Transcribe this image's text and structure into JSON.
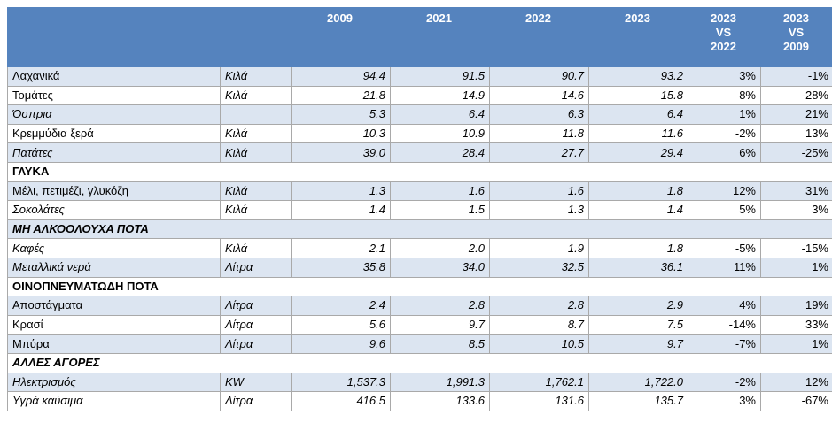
{
  "header": {
    "years": [
      "2009",
      "2021",
      "2022",
      "2023"
    ],
    "cmp1": [
      "2023",
      "VS",
      "2022"
    ],
    "cmp2": [
      "2023",
      "VS",
      "2009"
    ]
  },
  "rows": [
    {
      "type": "item",
      "name": "Λαχανικά",
      "name_italic": false,
      "unit": "Κιλά",
      "v2009": "94.4",
      "v2021": "91.5",
      "v2022": "90.7",
      "v2023": "93.2",
      "p1": "3%",
      "p2": "-1%"
    },
    {
      "type": "item",
      "name": "Τομάτες",
      "name_italic": false,
      "unit": "Κιλά",
      "v2009": "21.8",
      "v2021": "14.9",
      "v2022": "14.6",
      "v2023": "15.8",
      "p1": "8%",
      "p2": "-28%"
    },
    {
      "type": "item",
      "name": "Όσπρια",
      "name_italic": true,
      "unit": "",
      "v2009": "5.3",
      "v2021": "6.4",
      "v2022": "6.3",
      "v2023": "6.4",
      "p1": "1%",
      "p2": "21%"
    },
    {
      "type": "item",
      "name": "Κρεμμύδια ξερά",
      "name_italic": false,
      "unit": "Κιλά",
      "v2009": "10.3",
      "v2021": "10.9",
      "v2022": "11.8",
      "v2023": "11.6",
      "p1": "-2%",
      "p2": "13%"
    },
    {
      "type": "item",
      "name": "Πατάτες",
      "name_italic": true,
      "unit": "Κιλά",
      "v2009": "39.0",
      "v2021": "28.4",
      "v2022": "27.7",
      "v2023": "29.4",
      "p1": "6%",
      "p2": "-25%"
    },
    {
      "type": "cat",
      "name": "ΓΛΥΚΑ",
      "name_italic": false
    },
    {
      "type": "item",
      "name": "Μέλι, πετιμέζι, γλυκόζη",
      "name_italic": false,
      "unit": "Κιλά",
      "v2009": "1.3",
      "v2021": "1.6",
      "v2022": "1.6",
      "v2023": "1.8",
      "p1": "12%",
      "p2": "31%"
    },
    {
      "type": "item",
      "name": "Σοκολάτες",
      "name_italic": true,
      "unit": "Κιλά",
      "v2009": "1.4",
      "v2021": "1.5",
      "v2022": "1.3",
      "v2023": "1.4",
      "p1": "5%",
      "p2": "3%"
    },
    {
      "type": "cat",
      "name": "ΜΗ ΑΛΚΟΟΛΟΥΧΑ ΠΟΤΑ",
      "name_italic": true
    },
    {
      "type": "item",
      "name": "Καφές",
      "name_italic": true,
      "unit": "Κιλά",
      "v2009": "2.1",
      "v2021": "2.0",
      "v2022": "1.9",
      "v2023": "1.8",
      "p1": "-5%",
      "p2": "-15%"
    },
    {
      "type": "item",
      "name": "Μεταλλικά νερά",
      "name_italic": true,
      "unit": "Λίτρα",
      "v2009": "35.8",
      "v2021": "34.0",
      "v2022": "32.5",
      "v2023": "36.1",
      "p1": "11%",
      "p2": "1%"
    },
    {
      "type": "cat",
      "name": "ΟΙΝΟΠΝΕΥΜΑΤΩΔΗ ΠΟΤΑ",
      "name_italic": false
    },
    {
      "type": "item",
      "name": "Αποστάγματα",
      "name_italic": false,
      "unit": "Λίτρα",
      "v2009": "2.4",
      "v2021": "2.8",
      "v2022": "2.8",
      "v2023": "2.9",
      "p1": "4%",
      "p2": "19%"
    },
    {
      "type": "item",
      "name": "Κρασί",
      "name_italic": false,
      "unit": "Λίτρα",
      "v2009": "5.6",
      "v2021": "9.7",
      "v2022": "8.7",
      "v2023": "7.5",
      "p1": "-14%",
      "p2": "33%"
    },
    {
      "type": "item",
      "name": "Μπύρα",
      "name_italic": false,
      "unit": "Λίτρα",
      "v2009": "9.6",
      "v2021": "8.5",
      "v2022": "10.5",
      "v2023": "9.7",
      "p1": "-7%",
      "p2": "1%"
    },
    {
      "type": "cat",
      "name": "ΑΛΛΕΣ ΑΓΟΡΕΣ",
      "name_italic": true
    },
    {
      "type": "item",
      "name": "Ηλεκτρισμός",
      "name_italic": true,
      "unit": "KW",
      "v2009": "1,537.3",
      "v2021": "1,991.3",
      "v2022": "1,762.1",
      "v2023": "1,722.0",
      "p1": "-2%",
      "p2": "12%"
    },
    {
      "type": "item",
      "name": "Υγρά καύσιμα",
      "name_italic": true,
      "unit": "Λίτρα",
      "v2009": "416.5",
      "v2021": "133.6",
      "v2022": "131.6",
      "v2023": "135.7",
      "p1": "3%",
      "p2": "-67%"
    }
  ],
  "colors": {
    "header_bg": "#5583be",
    "row_shade": "#dce5f1",
    "row_plain": "#ffffff"
  }
}
